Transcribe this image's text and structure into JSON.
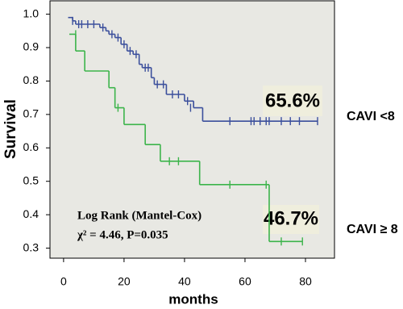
{
  "chart_data": {
    "type": "km",
    "xlabel": "months",
    "ylabel": "Survival",
    "xlim": [
      -4.5,
      89.6
    ],
    "ylim": [
      0.27,
      1.04
    ],
    "xticks": [
      0,
      20,
      40,
      60,
      80
    ],
    "yticks": [
      0.3,
      0.4,
      0.5,
      0.6,
      0.7,
      0.8,
      0.9,
      {
        "value": 1.0,
        "label": "1.0"
      }
    ],
    "annotations": [
      "65.6%",
      "46.7%",
      "Log Rank (Mantel-Cox)",
      "χ² = 4.46, P=0.035"
    ],
    "series": [
      {
        "name": "CAVI <8",
        "color": "#3b4f9c",
        "x": [
          1.5,
          3,
          4,
          12,
          14,
          15,
          17,
          19,
          21,
          23,
          25,
          26,
          29,
          30,
          34,
          40,
          43,
          46,
          84
        ],
        "values": [
          0.99,
          0.98,
          0.97,
          0.96,
          0.95,
          0.94,
          0.93,
          0.91,
          0.89,
          0.88,
          0.85,
          0.84,
          0.81,
          0.79,
          0.76,
          0.74,
          0.72,
          0.68,
          0.68
        ],
        "censored_x": [
          3,
          5,
          6,
          8,
          10,
          13,
          16,
          18,
          20,
          22,
          24,
          27,
          28,
          31,
          33,
          36,
          38,
          41,
          42,
          55,
          62,
          63,
          65,
          67,
          68,
          72,
          75,
          78,
          84
        ],
        "censored_values": [
          0.98,
          0.97,
          0.97,
          0.97,
          0.97,
          0.96,
          0.94,
          0.93,
          0.91,
          0.89,
          0.88,
          0.84,
          0.84,
          0.79,
          0.79,
          0.76,
          0.76,
          0.74,
          0.72,
          0.68,
          0.68,
          0.68,
          0.68,
          0.68,
          0.68,
          0.68,
          0.68,
          0.68,
          0.68
        ]
      },
      {
        "name": "CAVI ≥ 8",
        "color": "#3cb44b",
        "x": [
          1.9,
          4,
          7,
          15,
          17,
          20,
          27,
          32,
          45,
          68,
          79
        ],
        "values": [
          0.94,
          0.89,
          0.83,
          0.78,
          0.72,
          0.67,
          0.61,
          0.56,
          0.49,
          0.32,
          0.32
        ],
        "censored_x": [
          4,
          18,
          35,
          38,
          55,
          67,
          72,
          79
        ],
        "censored_values": [
          0.94,
          0.72,
          0.56,
          0.56,
          0.49,
          0.49,
          0.32,
          0.32
        ]
      }
    ]
  }
}
